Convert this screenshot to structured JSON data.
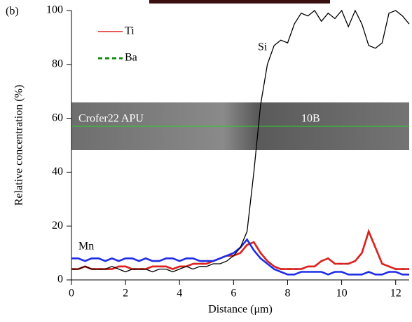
{
  "chart_data": {
    "type": "line",
    "panel_label": "(b)",
    "x_label": "Distance (μm)",
    "y_label": "Relative concentration (%)",
    "xlim": [
      0,
      12.5
    ],
    "xticks": [
      0,
      2,
      4,
      6,
      8,
      10,
      12
    ],
    "ylim": [
      0,
      100
    ],
    "yticks": [
      0,
      20,
      40,
      60,
      80,
      100
    ],
    "inset_labels": [
      "Crofer22 APU",
      "10B"
    ],
    "x": [
      0,
      0.25,
      0.5,
      0.75,
      1,
      1.25,
      1.5,
      1.75,
      2,
      2.25,
      2.5,
      2.75,
      3,
      3.25,
      3.5,
      3.75,
      4,
      4.25,
      4.5,
      4.75,
      5,
      5.25,
      5.5,
      5.75,
      6,
      6.25,
      6.5,
      6.75,
      7,
      7.25,
      7.5,
      7.75,
      8,
      8.25,
      8.5,
      8.75,
      9,
      9.25,
      9.5,
      9.75,
      10,
      10.25,
      10.5,
      10.75,
      11,
      11.25,
      11.5,
      11.75,
      12,
      12.25,
      12.5
    ],
    "series": [
      {
        "name": "Si",
        "color": "#000000",
        "dashed": false,
        "legend": false,
        "values": [
          4,
          4,
          5,
          4,
          4,
          4,
          5,
          4,
          3,
          4,
          4,
          4,
          3,
          4,
          4,
          3,
          4,
          5,
          4,
          5,
          5,
          6,
          6,
          7,
          9,
          12,
          18,
          40,
          65,
          80,
          87,
          89,
          88,
          95,
          99,
          98,
          100,
          96,
          99,
          97,
          100,
          94,
          100,
          95,
          87,
          86,
          88,
          99,
          100,
          98,
          95
        ]
      },
      {
        "name": "Mn",
        "color": "#1f2ee6",
        "dashed": false,
        "legend": false,
        "values": [
          8,
          8,
          7,
          8,
          8,
          7,
          8,
          7,
          8,
          8,
          7,
          8,
          7,
          7,
          8,
          8,
          7,
          8,
          8,
          7,
          7,
          7,
          8,
          9,
          10,
          12,
          15,
          11,
          8,
          6,
          4,
          3,
          2,
          2,
          3,
          3,
          3,
          3,
          2,
          3,
          3,
          2,
          2,
          2,
          3,
          2,
          2,
          3,
          3,
          2,
          2
        ]
      },
      {
        "name": "Ti",
        "color": "#e02020",
        "dashed": false,
        "legend": true,
        "values": [
          4,
          4,
          5,
          4,
          4,
          4,
          4,
          5,
          5,
          4,
          4,
          4,
          5,
          5,
          5,
          4,
          5,
          5,
          6,
          6,
          6,
          7,
          8,
          9,
          9,
          10,
          13,
          14,
          10,
          7,
          5,
          4,
          4,
          4,
          4,
          5,
          5,
          7,
          8,
          6,
          6,
          6,
          7,
          10,
          18,
          12,
          6,
          5,
          4,
          4,
          4
        ]
      },
      {
        "name": "Ba",
        "color": "#138a13",
        "dashed": true,
        "legend": true,
        "values": [
          4,
          4,
          5,
          4,
          4,
          4,
          4,
          5,
          5,
          4,
          4,
          4,
          5,
          5,
          5,
          4,
          5,
          5,
          6,
          6,
          6,
          7,
          8,
          9,
          9,
          10,
          13,
          14,
          10,
          7,
          5,
          4,
          4,
          4,
          4,
          5,
          5,
          7,
          8,
          6,
          6,
          6,
          7,
          10,
          18,
          12,
          6,
          5,
          4,
          4,
          4
        ]
      }
    ]
  }
}
